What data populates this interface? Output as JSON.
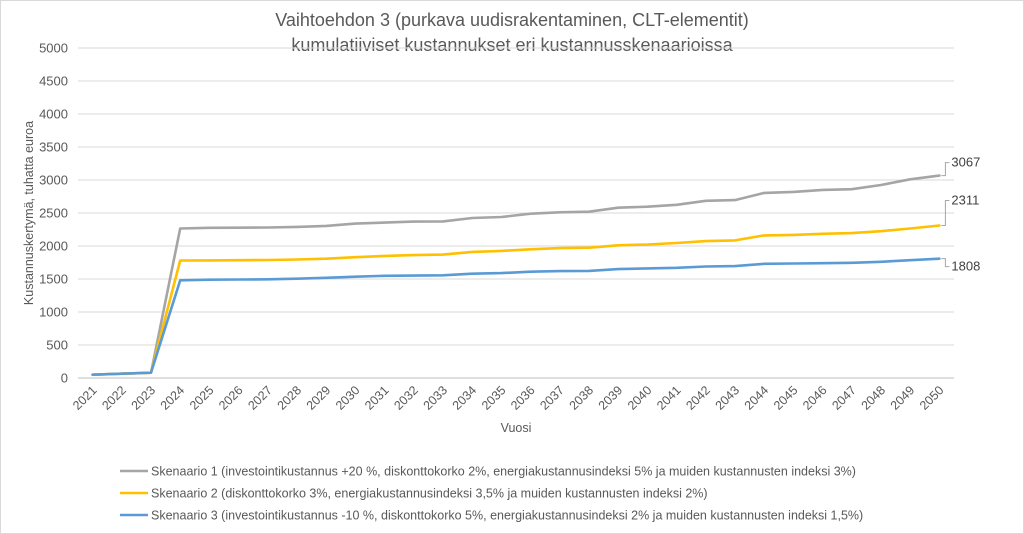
{
  "chart_data": {
    "type": "line",
    "title": [
      "Vaihtoehdon 3 (purkava uudisrakentaminen, CLT-elementit)",
      "kumulatiiviset kustannukset eri kustannusskenaarioissa"
    ],
    "xlabel": "Vuosi",
    "ylabel": "Kustannuskertymä, tuhatta euroa",
    "ylim": [
      0,
      5000
    ],
    "yticks": [
      "0",
      "500",
      "1000",
      "1500",
      "2000",
      "2500",
      "3000",
      "3500",
      "4000",
      "4500",
      "5000"
    ],
    "grid": true,
    "legend_position": "bottom",
    "categories": [
      "2021",
      "2022",
      "2023",
      "2024",
      "2025",
      "2026",
      "2027",
      "2028",
      "2029",
      "2030",
      "2031",
      "2032",
      "2033",
      "2034",
      "2035",
      "2036",
      "2037",
      "2038",
      "2039",
      "2040",
      "2041",
      "2042",
      "2043",
      "2044",
      "2045",
      "2046",
      "2047",
      "2048",
      "2049",
      "2050"
    ],
    "series": [
      {
        "name": "Skenaario 1 (investointikustannus +20 %, diskonttokorko 2%, energiakustannusindeksi 5% ja muiden kustannusten indeksi 3%)",
        "color": "#A5A5A5",
        "end_label": "3067",
        "values": [
          50,
          65,
          80,
          2265,
          2275,
          2278,
          2280,
          2290,
          2305,
          2340,
          2355,
          2370,
          2372,
          2425,
          2440,
          2490,
          2510,
          2520,
          2580,
          2595,
          2625,
          2685,
          2695,
          2805,
          2820,
          2850,
          2860,
          2925,
          3010,
          3067
        ]
      },
      {
        "name": "Skenaario 2 (diskonttokorko 3%, energiakustannusindeksi 3,5% ja muiden kustannusten indeksi 2%)",
        "color": "#FFC000",
        "end_label": "2311",
        "values": [
          50,
          65,
          80,
          1780,
          1782,
          1785,
          1788,
          1795,
          1808,
          1830,
          1850,
          1862,
          1870,
          1910,
          1925,
          1950,
          1968,
          1975,
          2010,
          2022,
          2045,
          2075,
          2085,
          2160,
          2168,
          2185,
          2195,
          2225,
          2265,
          2311
        ]
      },
      {
        "name": "Skenaario 3 (investointikustannus -10 %, diskonttokorko 5%, energiakustannusindeksi 2% ja muiden kustannusten indeksi 1,5%)",
        "color": "#5B9BD5",
        "end_label": "1808",
        "values": [
          50,
          65,
          80,
          1480,
          1490,
          1492,
          1496,
          1505,
          1518,
          1535,
          1548,
          1552,
          1556,
          1580,
          1590,
          1610,
          1620,
          1622,
          1650,
          1660,
          1670,
          1690,
          1695,
          1730,
          1735,
          1740,
          1745,
          1760,
          1785,
          1808
        ]
      }
    ]
  }
}
